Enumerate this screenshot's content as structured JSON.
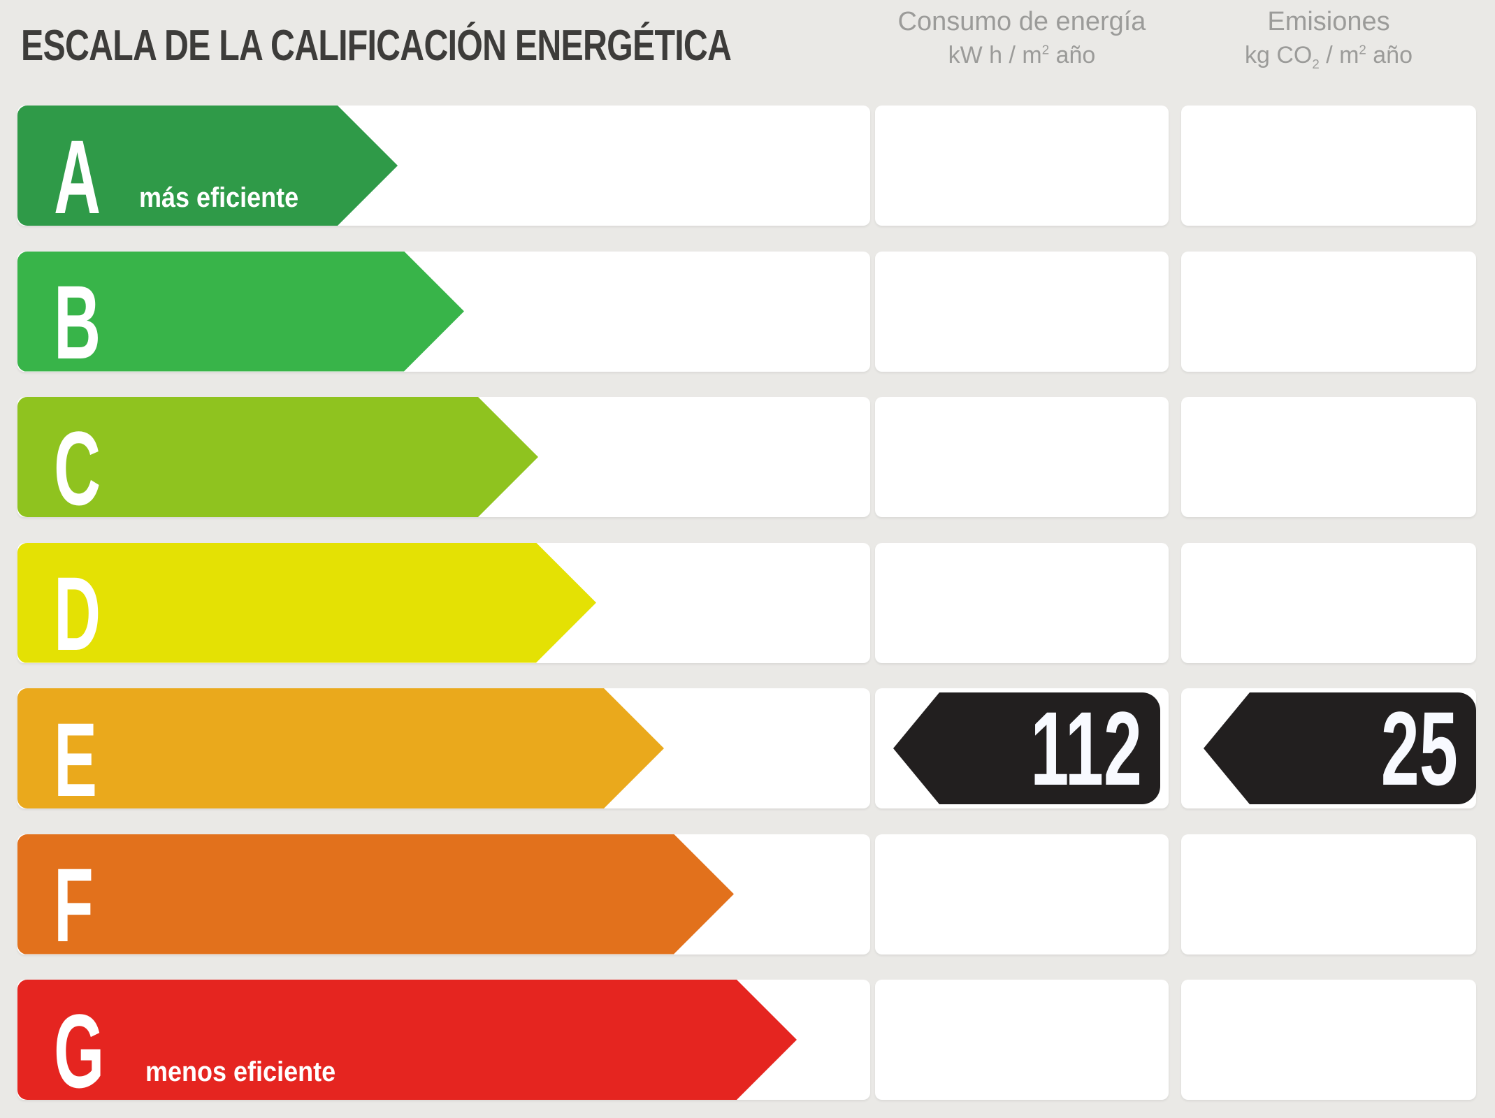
{
  "title": "ESCALA DE LA CALIFICACIÓN ENERGÉTICA",
  "columns": {
    "consumo": {
      "title": "Consumo de energía",
      "unit": {
        "pre": "kW h / m",
        "sup": "2",
        "post": " año"
      }
    },
    "emisiones": {
      "title": "Emisiones",
      "unit": {
        "pre": "kg CO",
        "sub": "2",
        "mid": " / m",
        "sup": "2",
        "post": " año"
      }
    }
  },
  "ratings": [
    {
      "letter": "A",
      "label": "más eficiente",
      "color": "#2f9a48",
      "arrow_width": 544
    },
    {
      "letter": "B",
      "label": "",
      "color": "#38b449",
      "arrow_width": 639
    },
    {
      "letter": "C",
      "label": "",
      "color": "#8fc31f",
      "arrow_width": 745
    },
    {
      "letter": "D",
      "label": "",
      "color": "#e4e104",
      "arrow_width": 828
    },
    {
      "letter": "E",
      "label": "",
      "color": "#eaa91c",
      "arrow_width": 925
    },
    {
      "letter": "F",
      "label": "",
      "color": "#e2711c",
      "arrow_width": 1025
    },
    {
      "letter": "G",
      "label": "menos eficiente",
      "color": "#e52520",
      "arrow_width": 1115
    }
  ],
  "result": {
    "rating": "E",
    "rating_index": 4,
    "consumo_value": "112",
    "emisiones_value": "25",
    "arrow_color": "#221f1f",
    "value_text_color": "#ffffff"
  },
  "colors": {
    "background": "#eae9e6",
    "cell_background": "#ffffff",
    "title_text": "#3d3c3a",
    "header_text": "#9b9b99"
  },
  "chart_data": {
    "type": "bar",
    "title": "ESCALA DE LA CALIFICACIÓN ENERGÉTICA",
    "categories": [
      "A",
      "B",
      "C",
      "D",
      "E",
      "F",
      "G"
    ],
    "bar_colors": [
      "#2f9a48",
      "#38b449",
      "#8fc31f",
      "#e4e104",
      "#eaa91c",
      "#e2711c",
      "#e52520"
    ],
    "bar_lengths_relative": [
      0.45,
      0.52,
      0.61,
      0.68,
      0.76,
      0.84,
      0.91
    ],
    "annotations": [
      "A = más eficiente",
      "G = menos eficiente"
    ],
    "selected_rating": "E",
    "series": [
      {
        "name": "Consumo de energía (kW h / m2 año)",
        "rating": "E",
        "value": 112
      },
      {
        "name": "Emisiones (kg CO2 / m2 año)",
        "rating": "E",
        "value": 25
      }
    ],
    "xlabel": "",
    "ylabel": "",
    "grid": false,
    "legend_position": "none"
  }
}
